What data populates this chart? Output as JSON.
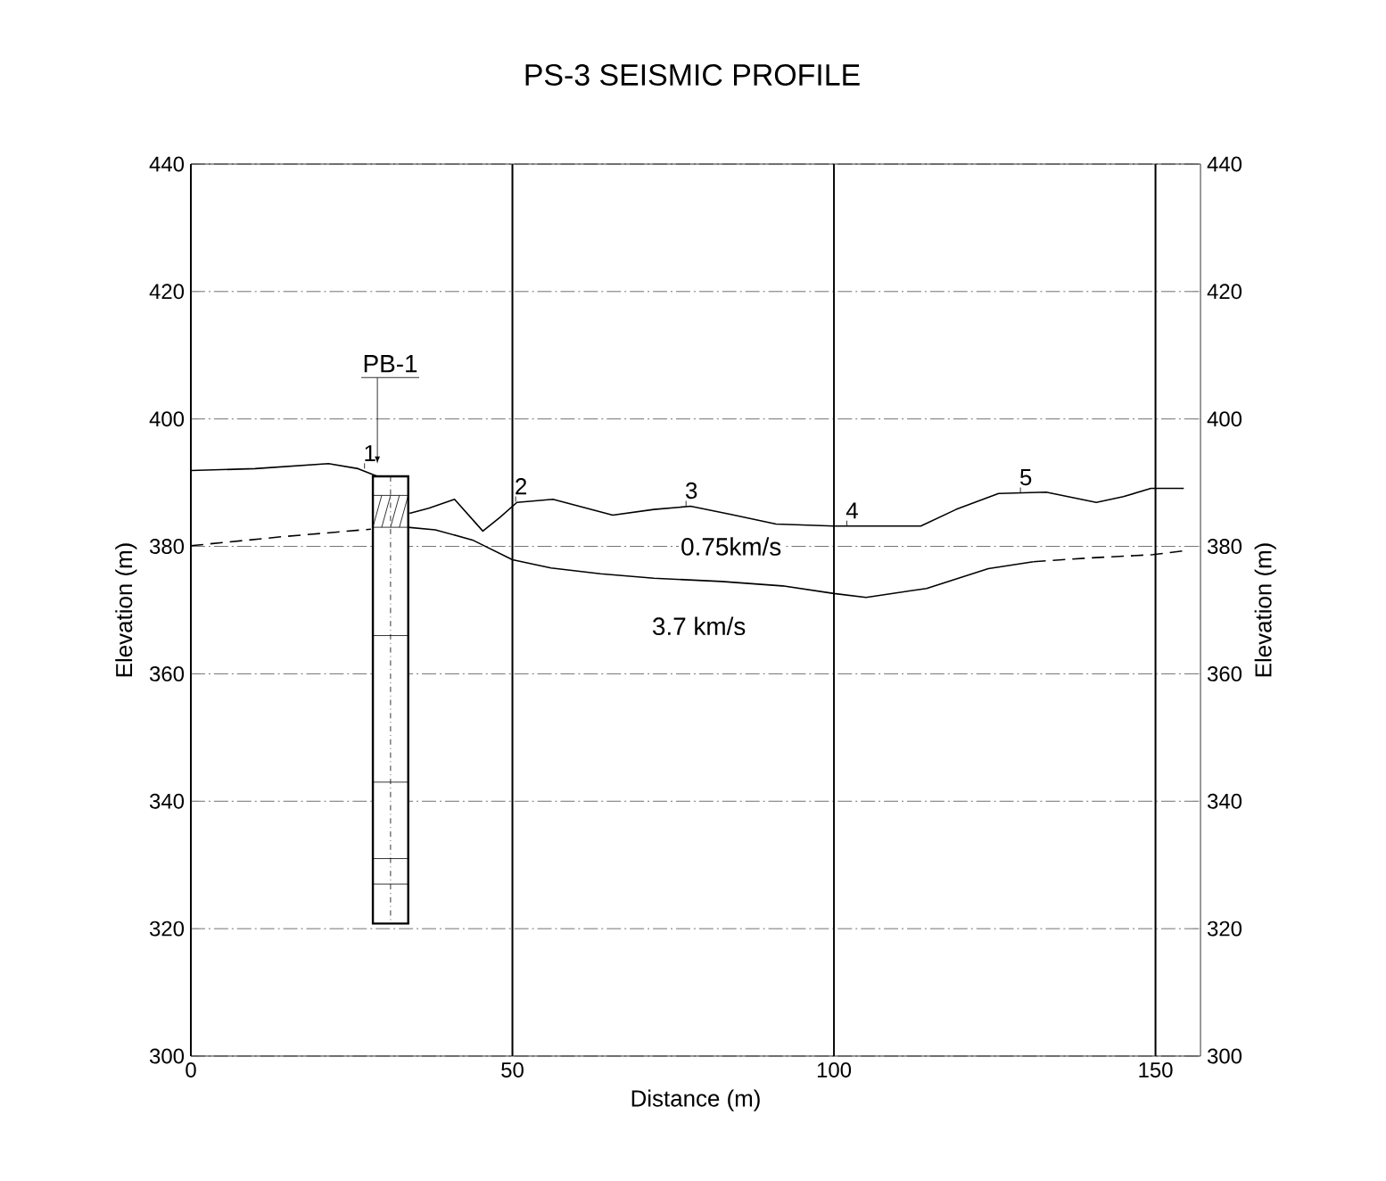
{
  "chart_data": {
    "type": "line",
    "title": "PS-3 SEISMIC PROFILE",
    "xlabel": "Distance (m)",
    "ylabel": "Elevation (m)",
    "y2label": "Elevation (m)",
    "xlim": [
      0,
      157
    ],
    "xticks": [
      0,
      50,
      100,
      150
    ],
    "ylim": [
      300,
      440
    ],
    "yticks": [
      300,
      320,
      340,
      360,
      380,
      400,
      420,
      440
    ],
    "y2lim": [
      300,
      440
    ],
    "y2ticks": [
      300,
      320,
      340,
      360,
      380,
      400,
      420,
      440
    ],
    "grid": true,
    "marker": "none",
    "line_style": "solid",
    "series": [
      {
        "color": "#000000",
        "x": [
          0,
          10,
          21.4,
          26,
          29,
          31,
          34,
          37,
          41,
          45.4,
          48,
          50.7,
          56.3,
          65.6,
          72,
          77.7,
          84,
          91,
          100,
          113.5,
          119,
          125.6,
          133,
          140.8,
          145,
          149.3,
          154.4
        ],
        "values": [
          391.9,
          392.2,
          393,
          392.2,
          391,
          null,
          385.2,
          386,
          387.4,
          382.4,
          384.5,
          386.9,
          387.4,
          384.9,
          385.8,
          386.3,
          385,
          383.5,
          383.2,
          383.2,
          385.8,
          388.3,
          388.5,
          386.9,
          387.8,
          389.1,
          389.1
        ]
      },
      {
        "color": "#000000",
        "line_style": "dashed",
        "x": [
          0,
          14,
          28
        ],
        "values": [
          380.1,
          381.5,
          382.7
        ]
      },
      {
        "color": "#000000",
        "x": [
          33.7,
          38,
          43.8,
          50,
          56,
          63.7,
          72,
          82.5,
          92,
          100,
          105,
          114.4,
          124,
          131
        ],
        "values": [
          383,
          382.6,
          381,
          377.9,
          376.6,
          375.7,
          375,
          374.5,
          373.8,
          372.6,
          372,
          373.4,
          376.5,
          377.6
        ]
      },
      {
        "color": "#000000",
        "line_style": "dashed",
        "x": [
          131,
          140,
          149.6,
          154.4
        ],
        "values": [
          377.6,
          378.2,
          378.7,
          379.3
        ]
      }
    ],
    "annotations": [
      {
        "text": "1",
        "x": 27,
        "y": 392.2
      },
      {
        "text": "2",
        "x": 50.5,
        "y": 387
      },
      {
        "text": "3",
        "x": 77,
        "y": 386.3
      },
      {
        "text": "4",
        "x": 102,
        "y": 383.2
      },
      {
        "text": "5",
        "x": 129,
        "y": 388.4
      },
      "PB-1",
      "0.75km/s",
      "3.7 km/s"
    ]
  }
}
